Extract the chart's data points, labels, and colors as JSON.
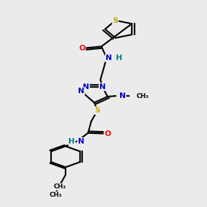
{
  "bg_color": "#ebebeb",
  "atom_colors": {
    "C": "#000000",
    "N": "#0000cc",
    "O": "#ff0000",
    "S_thio": "#aaaa00",
    "S_link": "#ccaa00",
    "H_color": "#008080"
  },
  "bond_color": "#000000",
  "lw": 1.6,
  "xlim": [
    0,
    10
  ],
  "ylim": [
    0,
    16
  ]
}
